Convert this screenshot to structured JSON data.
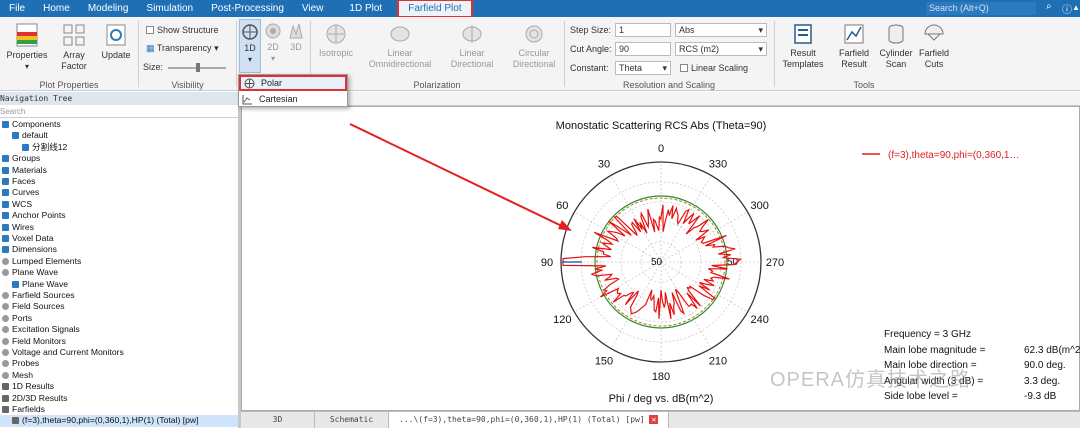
{
  "menu": [
    "File",
    "Home",
    "Modeling",
    "Simulation",
    "Post-Processing",
    "View",
    "1D Plot",
    "Farfield Plot"
  ],
  "search_placeholder": "Search (Alt+Q)",
  "ribbon": {
    "properties": "Properties",
    "array_factor": "Array Factor",
    "update": "Update",
    "group_plot_properties": "Plot Properties",
    "show_structure": "Show Structure",
    "transparency": "Transparency",
    "size": "Size:",
    "group_visibility": "Visibility",
    "d1": "1D",
    "d2": "2D",
    "d3": "3D",
    "isotropic": "Isotropic",
    "linear_omni": "Linear Omnidirectional",
    "linear_dir": "Linear Directional",
    "circular_dir": "Circular Directional",
    "group_polarization": "Polarization",
    "step_size_label": "Step Size:",
    "step_size_value": "1",
    "abs_value": "Abs",
    "cut_angle_label": "Cut Angle:",
    "cut_angle_value": "90",
    "rcs_value": "RCS (m2)",
    "constant_label": "Constant:",
    "constant_value": "Theta",
    "linear_scaling": "Linear Scaling",
    "group_resolution": "Resolution and Scaling",
    "result_templates": "Result Templates",
    "farfield_result": "Farfield Result",
    "cylinder_scan": "Cylinder Scan",
    "farfield_cuts": "Farfield Cuts",
    "group_tools": "Tools"
  },
  "dropdown": [
    "Polar",
    "Cartesian"
  ],
  "nav": {
    "header": "Navigation Tree",
    "search": "Search",
    "items": [
      "Components",
      "default",
      "分割线12",
      "Groups",
      "Materials",
      "Faces",
      "Curves",
      "WCS",
      "Anchor Points",
      "Wires",
      "Voxel Data",
      "Dimensions",
      "Lumped Elements",
      "Plane Wave",
      "Plane Wave",
      "Farfield Sources",
      "Field Sources",
      "Ports",
      "Excitation Signals",
      "Field Monitors",
      "Voltage and Current Monitors",
      "Probes",
      "Mesh",
      "1D Results",
      "2D/3D Results",
      "Farfields",
      "(f=3),theta=90,phi=(0,360,1),HP(1) (Total) [pw]"
    ]
  },
  "plot": {
    "title": "Monostatic Scattering RCS Abs (Theta=90)",
    "xlabel": "Phi / deg vs. dB(m^2)",
    "legend": "(f=3),theta=90,phi=(0,360,1…",
    "angle_labels": [
      "0",
      "30",
      "60",
      "90",
      "120",
      "150",
      "180",
      "210",
      "240",
      "270",
      "300",
      "330"
    ],
    "radial_labels": [
      "50",
      "50"
    ]
  },
  "info": [
    {
      "k": "Frequency = 3 GHz",
      "v": ""
    },
    {
      "k": "Main lobe magnitude =",
      "v": "62.3 dB(m^2)"
    },
    {
      "k": "Main lobe direction =",
      "v": "90.0 deg."
    },
    {
      "k": "Angular width (3 dB) =",
      "v": "3.3 deg."
    },
    {
      "k": "Side lobe level =",
      "v": "-9.3 dB"
    }
  ],
  "tabs": [
    "3D",
    "Schematic",
    "...\\(f=3),theta=90,phi=(0,360,1),HP(1) (Total) [pw]"
  ],
  "watermark": "OPERA仿真技术之路",
  "chart_data": {
    "type": "polar",
    "title": "Monostatic Scattering RCS Abs (Theta=90)",
    "xlabel": "Phi / deg vs. dB(m^2)",
    "series": [
      {
        "name": "(f=3),theta=90,phi=(0,360,1),HP(1) (Total) [pw]",
        "main_lobe_deg": 90,
        "main_lobe_db": 62.3
      }
    ],
    "angle_ticks": [
      0,
      30,
      60,
      90,
      120,
      150,
      180,
      210,
      240,
      270,
      300,
      330
    ],
    "radial_tick": 50
  }
}
